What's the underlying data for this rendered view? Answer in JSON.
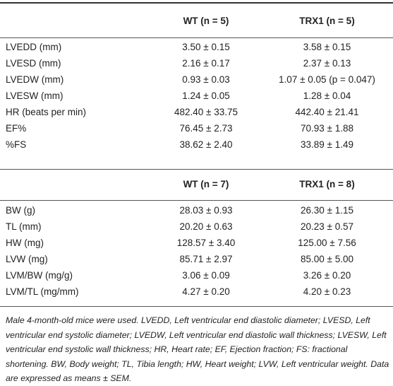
{
  "table1": {
    "headers": [
      "",
      "WT (n = 5)",
      "TRX1 (n = 5)"
    ],
    "rows": [
      [
        "LVEDD (mm)",
        "3.50 ± 0.15",
        "3.58 ± 0.15"
      ],
      [
        "LVESD (mm)",
        "2.16 ± 0.17",
        "2.37 ± 0.13"
      ],
      [
        "LVEDW (mm)",
        "0.93 ± 0.03",
        "1.07 ± 0.05 (p = 0.047)"
      ],
      [
        "LVESW (mm)",
        "1.24 ± 0.05",
        "1.28 ± 0.04"
      ],
      [
        "HR (beats per min)",
        "482.40 ± 33.75",
        "442.40 ± 21.41"
      ],
      [
        "EF%",
        "76.45 ± 2.73",
        "70.93 ± 1.88"
      ],
      [
        "%FS",
        "38.62 ± 2.40",
        "33.89 ± 1.49"
      ]
    ]
  },
  "table2": {
    "headers": [
      "",
      "WT (n = 7)",
      "TRX1 (n = 8)"
    ],
    "rows": [
      [
        "BW (g)",
        "28.03 ± 0.93",
        "26.30 ± 1.15"
      ],
      [
        "TL (mm)",
        "20.20 ± 0.63",
        "20.23 ± 0.57"
      ],
      [
        "HW (mg)",
        "128.57 ± 3.40",
        "125.00 ± 7.56"
      ],
      [
        "LVW (mg)",
        "85.71 ± 2.97",
        "85.00 ± 5.00"
      ],
      [
        "LVM/BW (mg/g)",
        "3.06 ± 0.09",
        "3.26 ± 0.20"
      ],
      [
        "LVM/TL (mg/mm)",
        "4.27 ± 0.20",
        "4.20 ± 0.23"
      ]
    ]
  },
  "footnote": "Male 4-month-old mice were used. LVEDD, Left ventricular end diastolic diameter; LVESD, Left ventricular end systolic diameter; LVEDW, Left ventricular end diastolic wall thickness; LVESW, Left ventricular end systolic wall thickness; HR, Heart rate; EF, Ejection fraction; FS: fractional shortening. BW, Body weight; TL, Tibia length; HW, Heart weight; LVW, Left ventricular weight. Data are expressed as means ± SEM."
}
